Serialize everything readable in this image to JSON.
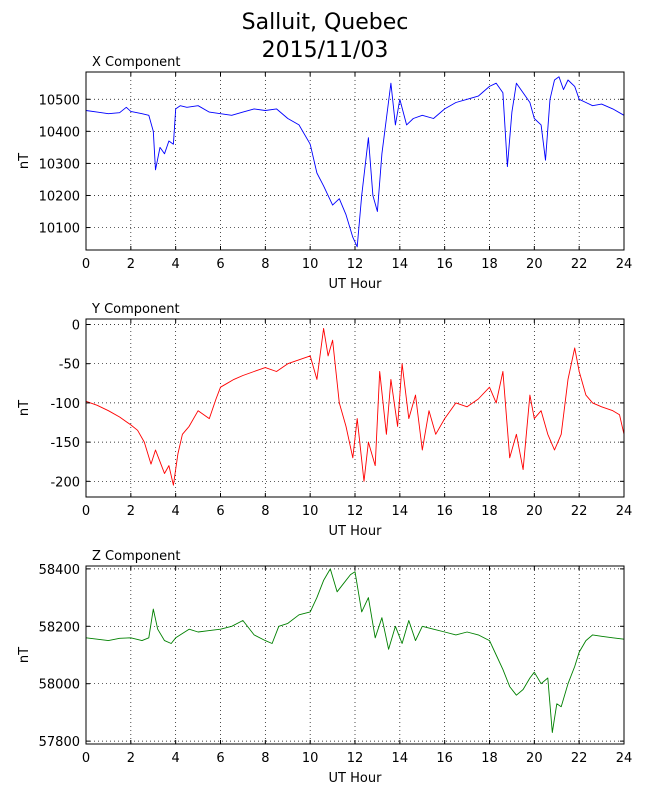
{
  "figure": {
    "title_line1": "Salluit, Quebec",
    "title_line2": "2015/11/03"
  },
  "chart_data": [
    {
      "type": "line",
      "title": "X Component",
      "xlabel": "UT Hour",
      "ylabel": "nT",
      "color": "#0000ff",
      "xlim": [
        0,
        24
      ],
      "ylim": [
        10030,
        10585
      ],
      "xticks": [
        0,
        2,
        4,
        6,
        8,
        10,
        12,
        14,
        16,
        18,
        20,
        22,
        24
      ],
      "yticks": [
        10100,
        10200,
        10300,
        10400,
        10500
      ],
      "grid": true,
      "x": [
        0,
        0.5,
        1,
        1.5,
        1.8,
        2,
        2.5,
        2.8,
        3,
        3.1,
        3.3,
        3.5,
        3.7,
        3.9,
        4,
        4.2,
        4.5,
        5,
        5.5,
        6,
        6.5,
        7,
        7.5,
        8,
        8.5,
        9,
        9.5,
        10,
        10.3,
        10.6,
        11,
        11.3,
        11.6,
        11.9,
        12.1,
        12.3,
        12.6,
        12.8,
        13,
        13.2,
        13.4,
        13.6,
        13.8,
        14,
        14.3,
        14.6,
        15,
        15.5,
        16,
        16.5,
        17,
        17.5,
        18,
        18.3,
        18.6,
        18.8,
        19,
        19.2,
        19.5,
        19.8,
        20,
        20.3,
        20.5,
        20.7,
        20.9,
        21.1,
        21.3,
        21.5,
        21.8,
        22,
        22.3,
        22.6,
        23,
        23.5,
        24
      ],
      "y": [
        10465,
        10460,
        10455,
        10458,
        10475,
        10462,
        10455,
        10450,
        10400,
        10280,
        10350,
        10330,
        10370,
        10360,
        10470,
        10480,
        10475,
        10480,
        10460,
        10455,
        10450,
        10460,
        10470,
        10465,
        10470,
        10440,
        10420,
        10360,
        10270,
        10230,
        10170,
        10190,
        10140,
        10070,
        10040,
        10200,
        10380,
        10200,
        10150,
        10330,
        10440,
        10550,
        10420,
        10500,
        10420,
        10440,
        10450,
        10440,
        10470,
        10490,
        10500,
        10510,
        10540,
        10550,
        10520,
        10290,
        10460,
        10550,
        10520,
        10490,
        10440,
        10420,
        10310,
        10500,
        10560,
        10570,
        10530,
        10560,
        10540,
        10500,
        10490,
        10480,
        10485,
        10470,
        10450
      ]
    },
    {
      "type": "line",
      "title": "Y Component",
      "xlabel": "UT Hour",
      "ylabel": "nT",
      "color": "#ff0000",
      "xlim": [
        0,
        24
      ],
      "ylim": [
        -220,
        7
      ],
      "xticks": [
        0,
        2,
        4,
        6,
        8,
        10,
        12,
        14,
        16,
        18,
        20,
        22,
        24
      ],
      "yticks": [
        -200,
        -150,
        -100,
        -50,
        0
      ],
      "grid": true,
      "x": [
        0,
        0.5,
        1,
        1.5,
        2,
        2.3,
        2.6,
        2.9,
        3.1,
        3.3,
        3.5,
        3.7,
        3.9,
        4.1,
        4.3,
        4.6,
        5,
        5.5,
        5.8,
        6,
        6.3,
        6.6,
        7,
        7.5,
        8,
        8.5,
        9,
        9.5,
        10,
        10.3,
        10.6,
        10.8,
        11,
        11.3,
        11.6,
        11.9,
        12.1,
        12.4,
        12.6,
        12.9,
        13.1,
        13.4,
        13.6,
        13.9,
        14.1,
        14.4,
        14.7,
        15,
        15.3,
        15.6,
        16,
        16.5,
        17,
        17.5,
        18,
        18.3,
        18.6,
        18.9,
        19.2,
        19.5,
        19.8,
        20,
        20.3,
        20.6,
        20.9,
        21.2,
        21.5,
        21.8,
        22,
        22.3,
        22.6,
        23,
        23.5,
        23.8,
        24
      ],
      "y": [
        -98,
        -103,
        -110,
        -118,
        -128,
        -135,
        -150,
        -178,
        -160,
        -175,
        -190,
        -180,
        -205,
        -165,
        -140,
        -130,
        -110,
        -120,
        -95,
        -80,
        -75,
        -70,
        -65,
        -60,
        -55,
        -60,
        -50,
        -45,
        -40,
        -70,
        -5,
        -40,
        -20,
        -100,
        -130,
        -170,
        -120,
        -200,
        -150,
        -180,
        -60,
        -140,
        -70,
        -130,
        -50,
        -120,
        -90,
        -160,
        -110,
        -140,
        -120,
        -100,
        -105,
        -95,
        -80,
        -100,
        -60,
        -170,
        -140,
        -185,
        -90,
        -120,
        -110,
        -140,
        -160,
        -140,
        -70,
        -30,
        -60,
        -90,
        -100,
        -105,
        -110,
        -115,
        -140
      ]
    },
    {
      "type": "line",
      "title": "Z Component",
      "xlabel": "UT Hour",
      "ylabel": "nT",
      "color": "#008000",
      "xlim": [
        0,
        24
      ],
      "ylim": [
        57790,
        58410
      ],
      "xticks": [
        0,
        2,
        4,
        6,
        8,
        10,
        12,
        14,
        16,
        18,
        20,
        22,
        24
      ],
      "yticks": [
        57800,
        58000,
        58200,
        58400
      ],
      "grid": true,
      "x": [
        0,
        0.5,
        1,
        1.5,
        2,
        2.5,
        2.8,
        3,
        3.2,
        3.5,
        3.8,
        4,
        4.3,
        4.6,
        5,
        5.5,
        6,
        6.5,
        7,
        7.5,
        8,
        8.3,
        8.6,
        9,
        9.5,
        10,
        10.3,
        10.6,
        10.9,
        11.2,
        11.5,
        11.8,
        12,
        12.3,
        12.6,
        12.9,
        13.2,
        13.5,
        13.8,
        14.1,
        14.4,
        14.7,
        15,
        15.5,
        16,
        16.5,
        17,
        17.5,
        18,
        18.3,
        18.6,
        18.9,
        19.2,
        19.5,
        19.8,
        20,
        20.3,
        20.6,
        20.8,
        21,
        21.2,
        21.5,
        21.8,
        22,
        22.3,
        22.6,
        23,
        23.5,
        24
      ],
      "y": [
        58160,
        58155,
        58150,
        58158,
        58160,
        58150,
        58160,
        58260,
        58190,
        58150,
        58140,
        58160,
        58175,
        58190,
        58180,
        58185,
        58190,
        58200,
        58220,
        58170,
        58150,
        58140,
        58200,
        58210,
        58240,
        58250,
        58300,
        58360,
        58400,
        58320,
        58350,
        58380,
        58390,
        58250,
        58300,
        58160,
        58230,
        58120,
        58200,
        58140,
        58220,
        58150,
        58200,
        58190,
        58180,
        58170,
        58180,
        58170,
        58150,
        58100,
        58050,
        57990,
        57960,
        57980,
        58020,
        58040,
        58000,
        58020,
        57830,
        57930,
        57920,
        58000,
        58060,
        58110,
        58150,
        58170,
        58165,
        58160,
        58155
      ]
    }
  ]
}
